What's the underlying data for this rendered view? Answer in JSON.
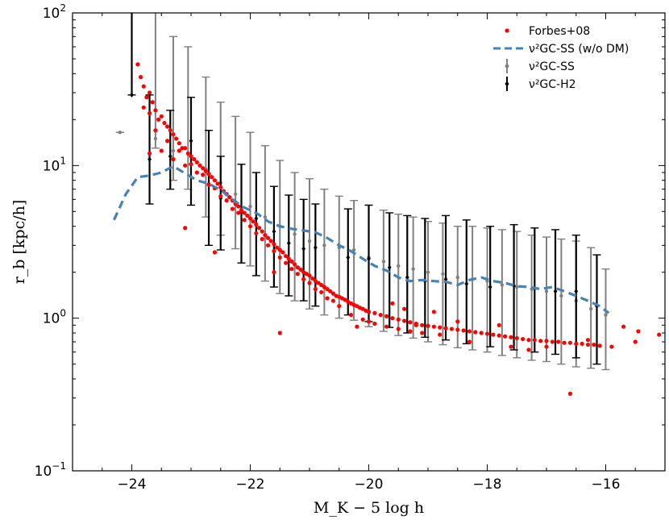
{
  "chart_data": {
    "type": "scatter",
    "xlabel": "M_K − 5 log h",
    "ylabel": "r_b [kpc/h]",
    "xlim": [
      -25.0,
      -15.0
    ],
    "ylim": [
      0.1,
      100
    ],
    "yscale": "log",
    "x_ticks": [
      -24,
      -22,
      -20,
      -18,
      -16
    ],
    "x_tick_labels": [
      "−24",
      "−22",
      "−20",
      "−18",
      "−16"
    ],
    "y_ticks": [
      0.1,
      1,
      10,
      100
    ],
    "y_tick_labels": [
      {
        "base": "10",
        "exp": "−1"
      },
      {
        "base": "10",
        "exp": "0"
      },
      {
        "base": "10",
        "exp": "1"
      },
      {
        "base": "10",
        "exp": "2"
      }
    ],
    "legend": {
      "position": "top-right",
      "entries": [
        {
          "series": "forbes",
          "label": "Forbes+08"
        },
        {
          "series": "ss_nodm",
          "label": "ν²GC-SS (w/o DM)"
        },
        {
          "series": "ss",
          "label": "ν²GC-SS"
        },
        {
          "series": "h2",
          "label": "ν²GC-H2"
        }
      ]
    },
    "series": [
      {
        "name": "Forbes+08",
        "key": "forbes",
        "type": "scatter",
        "color": "#ff0000",
        "points": [
          [
            -23.9,
            46
          ],
          [
            -23.85,
            38
          ],
          [
            -23.8,
            33
          ],
          [
            -23.75,
            28
          ],
          [
            -23.7,
            30
          ],
          [
            -23.65,
            26
          ],
          [
            -23.8,
            24
          ],
          [
            -23.7,
            22
          ],
          [
            -23.6,
            23
          ],
          [
            -23.55,
            20
          ],
          [
            -23.5,
            21
          ],
          [
            -23.45,
            19
          ],
          [
            -23.4,
            18
          ],
          [
            -23.35,
            17
          ],
          [
            -23.3,
            16
          ],
          [
            -23.25,
            15
          ],
          [
            -23.2,
            14
          ],
          [
            -23.15,
            13
          ],
          [
            -23.1,
            13
          ],
          [
            -23.05,
            12
          ],
          [
            -23.0,
            11.5
          ],
          [
            -22.95,
            11
          ],
          [
            -22.9,
            10.5
          ],
          [
            -22.85,
            10
          ],
          [
            -22.8,
            9.6
          ],
          [
            -22.75,
            9.2
          ],
          [
            -22.7,
            8.8
          ],
          [
            -22.65,
            8.4
          ],
          [
            -22.6,
            8.0
          ],
          [
            -22.55,
            7.6
          ],
          [
            -22.5,
            7.2
          ],
          [
            -22.45,
            6.8
          ],
          [
            -22.4,
            6.5
          ],
          [
            -22.35,
            6.2
          ],
          [
            -22.3,
            5.9
          ],
          [
            -22.25,
            5.6
          ],
          [
            -22.2,
            5.4
          ],
          [
            -22.15,
            5.1
          ],
          [
            -22.1,
            4.9
          ],
          [
            -22.05,
            4.7
          ],
          [
            -22.0,
            4.5
          ],
          [
            -21.95,
            4.3
          ],
          [
            -21.9,
            4.1
          ],
          [
            -21.85,
            3.9
          ],
          [
            -21.8,
            3.7
          ],
          [
            -21.75,
            3.5
          ],
          [
            -21.7,
            3.35
          ],
          [
            -21.65,
            3.2
          ],
          [
            -21.6,
            3.05
          ],
          [
            -21.55,
            2.9
          ],
          [
            -21.5,
            2.8
          ],
          [
            -21.45,
            2.7
          ],
          [
            -21.4,
            2.55
          ],
          [
            -21.35,
            2.45
          ],
          [
            -21.3,
            2.35
          ],
          [
            -21.25,
            2.25
          ],
          [
            -21.2,
            2.15
          ],
          [
            -21.15,
            2.08
          ],
          [
            -21.1,
            2.0
          ],
          [
            -21.05,
            1.95
          ],
          [
            -21.0,
            1.9
          ],
          [
            -20.95,
            1.82
          ],
          [
            -20.9,
            1.75
          ],
          [
            -20.85,
            1.7
          ],
          [
            -20.8,
            1.65
          ],
          [
            -20.75,
            1.6
          ],
          [
            -20.7,
            1.55
          ],
          [
            -20.65,
            1.5
          ],
          [
            -20.6,
            1.45
          ],
          [
            -20.55,
            1.4
          ],
          [
            -20.5,
            1.38
          ],
          [
            -20.45,
            1.35
          ],
          [
            -20.4,
            1.32
          ],
          [
            -20.35,
            1.28
          ],
          [
            -20.3,
            1.25
          ],
          [
            -20.25,
            1.22
          ],
          [
            -20.2,
            1.2
          ],
          [
            -20.15,
            1.17
          ],
          [
            -20.1,
            1.15
          ],
          [
            -20.05,
            1.12
          ],
          [
            -20.0,
            1.1
          ],
          [
            -19.9,
            1.08
          ],
          [
            -19.8,
            1.05
          ],
          [
            -19.7,
            1.03
          ],
          [
            -19.6,
            1.0
          ],
          [
            -19.5,
            0.98
          ],
          [
            -19.4,
            0.96
          ],
          [
            -19.3,
            0.94
          ],
          [
            -19.2,
            0.92
          ],
          [
            -19.1,
            0.9
          ],
          [
            -19.0,
            0.89
          ],
          [
            -18.9,
            0.88
          ],
          [
            -18.8,
            0.87
          ],
          [
            -18.7,
            0.86
          ],
          [
            -18.6,
            0.85
          ],
          [
            -18.5,
            0.84
          ],
          [
            -18.4,
            0.83
          ],
          [
            -18.3,
            0.82
          ],
          [
            -18.2,
            0.81
          ],
          [
            -18.1,
            0.8
          ],
          [
            -18.0,
            0.79
          ],
          [
            -17.9,
            0.78
          ],
          [
            -17.8,
            0.77
          ],
          [
            -17.7,
            0.76
          ],
          [
            -17.6,
            0.75
          ],
          [
            -17.5,
            0.74
          ],
          [
            -17.4,
            0.73
          ],
          [
            -17.3,
            0.72
          ],
          [
            -17.2,
            0.72
          ],
          [
            -17.1,
            0.71
          ],
          [
            -17.0,
            0.71
          ],
          [
            -16.9,
            0.7
          ],
          [
            -16.8,
            0.7
          ],
          [
            -16.7,
            0.69
          ],
          [
            -16.6,
            0.69
          ],
          [
            -16.5,
            0.68
          ],
          [
            -16.4,
            0.68
          ],
          [
            -16.3,
            0.67
          ],
          [
            -16.2,
            0.67
          ],
          [
            -16.1,
            0.66
          ],
          [
            -23.7,
            12
          ],
          [
            -23.5,
            12.5
          ],
          [
            -23.3,
            11
          ],
          [
            -23.1,
            10
          ],
          [
            -22.9,
            9
          ],
          [
            -22.7,
            7.5
          ],
          [
            -22.5,
            6.3
          ],
          [
            -22.3,
            5.2
          ],
          [
            -22.1,
            4.4
          ],
          [
            -21.9,
            3.6
          ],
          [
            -21.7,
            3.0
          ],
          [
            -21.5,
            2.5
          ],
          [
            -21.3,
            2.1
          ],
          [
            -21.1,
            1.8
          ],
          [
            -20.9,
            1.55
          ],
          [
            -20.7,
            1.35
          ],
          [
            -20.5,
            1.2
          ],
          [
            -20.3,
            1.05
          ],
          [
            -20.1,
            0.98
          ],
          [
            -19.9,
            0.92
          ],
          [
            -19.7,
            0.88
          ],
          [
            -19.5,
            0.85
          ],
          [
            -19.3,
            0.82
          ],
          [
            -19.1,
            0.8
          ],
          [
            -23.6,
            17
          ],
          [
            -23.4,
            14.5
          ],
          [
            -23.2,
            12.5
          ],
          [
            -23.0,
            10.2
          ],
          [
            -22.8,
            8.7
          ],
          [
            -22.6,
            7.1
          ],
          [
            -22.4,
            5.9
          ],
          [
            -22.2,
            4.9
          ],
          [
            -22.0,
            4.0
          ],
          [
            -21.8,
            3.3
          ],
          [
            -21.6,
            2.75
          ],
          [
            -21.4,
            2.3
          ],
          [
            -21.2,
            1.95
          ],
          [
            -21.0,
            1.7
          ],
          [
            -20.8,
            1.48
          ],
          [
            -20.6,
            1.3
          ],
          [
            -23.1,
            3.9
          ],
          [
            -22.6,
            2.7
          ],
          [
            -21.6,
            2.0
          ],
          [
            -21.5,
            0.8
          ],
          [
            -20.2,
            0.88
          ],
          [
            -19.4,
            1.15
          ],
          [
            -18.9,
            1.1
          ],
          [
            -18.5,
            0.95
          ],
          [
            -17.8,
            0.9
          ],
          [
            -17.3,
            0.62
          ],
          [
            -17.0,
            0.65
          ],
          [
            -16.6,
            0.32
          ],
          [
            -16.3,
            0.72
          ],
          [
            -15.9,
            0.65
          ],
          [
            -15.7,
            0.88
          ],
          [
            -15.5,
            0.7
          ],
          [
            -15.45,
            0.82
          ],
          [
            -15.1,
            0.78
          ],
          [
            -20.0,
            0.95
          ],
          [
            -19.6,
            1.25
          ],
          [
            -19.2,
            0.9
          ],
          [
            -18.8,
            0.78
          ],
          [
            -18.3,
            0.7
          ],
          [
            -17.6,
            0.65
          ]
        ]
      },
      {
        "name": "ν²GC-SS (w/o DM)",
        "key": "ss_nodm",
        "type": "line",
        "style": "dashed",
        "color": "#4682b4",
        "x": [
          -24.3,
          -24.1,
          -23.9,
          -23.7,
          -23.5,
          -23.3,
          -23.1,
          -22.9,
          -22.7,
          -22.5,
          -22.3,
          -22.1,
          -21.9,
          -21.7,
          -21.5,
          -21.3,
          -21.1,
          -20.9,
          -20.7,
          -20.5,
          -20.3,
          -20.1,
          -19.9,
          -19.7,
          -19.5,
          -19.3,
          -19.1,
          -18.9,
          -18.7,
          -18.5,
          -18.3,
          -18.1,
          -17.9,
          -17.7,
          -17.5,
          -17.3,
          -17.1,
          -16.9,
          -16.7,
          -16.5,
          -16.3,
          -16.1,
          -15.95
        ],
        "y": [
          4.4,
          6.5,
          8.4,
          8.6,
          9.0,
          9.9,
          8.9,
          8.0,
          7.6,
          6.9,
          6.0,
          5.3,
          4.9,
          4.3,
          4.0,
          3.85,
          3.75,
          3.65,
          3.35,
          3.0,
          2.75,
          2.45,
          2.2,
          2.05,
          1.85,
          1.75,
          1.78,
          1.75,
          1.73,
          1.65,
          1.78,
          1.85,
          1.75,
          1.7,
          1.62,
          1.6,
          1.55,
          1.6,
          1.5,
          1.4,
          1.3,
          1.2,
          1.08
        ]
      },
      {
        "name": "ν²GC-SS",
        "key": "ss",
        "type": "errorbar",
        "color": "#808080",
        "x": [
          -24.2,
          -23.6,
          -23.3,
          -23.05,
          -22.75,
          -22.5,
          -22.25,
          -22.0,
          -21.75,
          -21.5,
          -21.25,
          -21.0,
          -20.75,
          -20.5,
          -20.25,
          -20.0,
          -19.75,
          -19.5,
          -19.25,
          -19.0,
          -18.75,
          -18.5,
          -18.25,
          -18.0,
          -17.75,
          -17.5,
          -17.25,
          -17.0,
          -16.75,
          -16.5,
          -16.25,
          -16.0
        ],
        "y": [
          16.5,
          15.0,
          12.5,
          12.0,
          9.5,
          7.7,
          6.5,
          5.4,
          4.6,
          4.0,
          3.55,
          3.2,
          3.0,
          2.9,
          2.8,
          2.5,
          2.35,
          2.2,
          2.1,
          2.0,
          1.95,
          1.85,
          1.8,
          1.75,
          1.65,
          1.6,
          1.55,
          1.5,
          1.4,
          1.3,
          1.15,
          1.05
        ],
        "ylow": [
          16.5,
          13.0,
          8.0,
          7.0,
          4.6,
          3.5,
          2.85,
          2.2,
          1.75,
          1.45,
          1.3,
          1.15,
          1.05,
          1.0,
          0.97,
          0.88,
          0.82,
          0.77,
          0.74,
          0.7,
          0.67,
          0.64,
          0.62,
          0.6,
          0.57,
          0.55,
          0.53,
          0.52,
          0.5,
          0.48,
          0.47,
          0.46
        ],
        "yhigh": [
          16.5,
          100,
          70,
          60,
          38,
          26,
          21,
          16.5,
          13.5,
          10.8,
          9.0,
          8.2,
          7.0,
          6.3,
          5.9,
          5.5,
          5.1,
          4.8,
          4.6,
          4.3,
          4.2,
          4.0,
          4.0,
          3.9,
          3.8,
          3.7,
          3.5,
          3.4,
          3.3,
          3.2,
          2.9,
          2.1
        ]
      },
      {
        "name": "ν²GC-H2",
        "key": "h2",
        "type": "errorbar",
        "color": "#000000",
        "x": [
          -24.0,
          -23.7,
          -23.35,
          -23.0,
          -22.7,
          -22.5,
          -22.15,
          -21.9,
          -21.6,
          -21.35,
          -21.1,
          -20.9,
          -20.35,
          -20.0,
          -19.65,
          -19.35,
          -19.05,
          -18.7,
          -18.35,
          -17.95,
          -17.55,
          -17.2,
          -16.85,
          -16.5,
          -16.15
        ],
        "y": [
          29.0,
          11.0,
          11.5,
          14.5,
          7.6,
          6.1,
          5.1,
          4.5,
          3.7,
          3.1,
          2.85,
          2.9,
          2.5,
          2.45,
          2.15,
          1.85,
          1.75,
          1.8,
          1.68,
          1.6,
          1.63,
          1.57,
          1.5,
          1.5,
          1.2
        ],
        "ylow": [
          29.0,
          5.6,
          7.0,
          5.5,
          3.0,
          2.8,
          2.3,
          1.9,
          1.6,
          1.4,
          1.3,
          1.2,
          1.05,
          0.95,
          0.87,
          0.8,
          0.75,
          0.72,
          0.68,
          0.65,
          0.62,
          0.6,
          0.58,
          0.55,
          0.5
        ],
        "yhigh": [
          100,
          29,
          23,
          28,
          17,
          11.5,
          10.2,
          9.0,
          7.3,
          6.4,
          6.0,
          5.6,
          5.2,
          5.5,
          4.9,
          4.7,
          4.5,
          4.7,
          4.4,
          4.0,
          4.1,
          3.9,
          3.8,
          3.5,
          2.6
        ]
      }
    ]
  }
}
